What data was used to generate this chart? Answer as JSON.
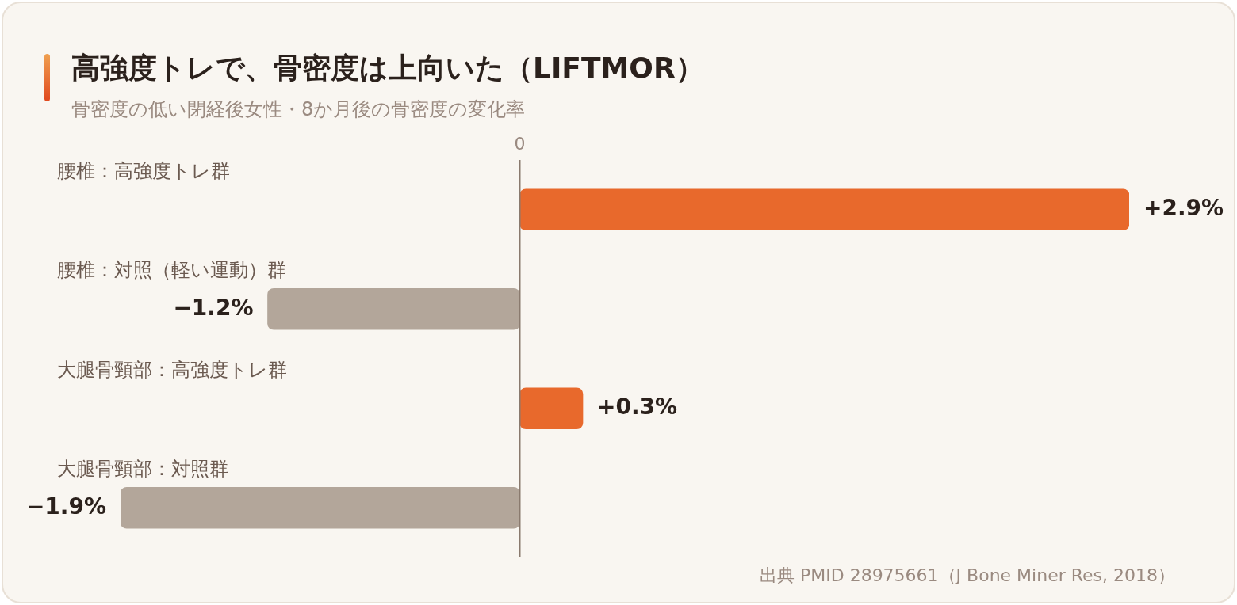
{
  "chart_data": {
    "type": "bar",
    "orientation": "horizontal",
    "title": "高強度トレで、骨密度は上向いた（LIFTMOR）",
    "subtitle": "骨密度の低い閉経後女性・8か月後の骨密度の変化率",
    "categories": [
      "腰椎：高強度トレ群",
      "腰椎：対照（軽い運動）群",
      "大腿骨頸部：高強度トレ群",
      "大腿骨頸部：対照群"
    ],
    "values": [
      2.9,
      -1.2,
      0.3,
      -1.9
    ],
    "colors": [
      "#e8692c",
      "#b3a69a",
      "#e8692c",
      "#b3a69a"
    ],
    "value_labels": [
      "+2.9%",
      "−1.2%",
      "+0.3%",
      "−1.9%"
    ],
    "legend": false,
    "ref_lines": [
      {
        "axis": "x",
        "value": 0,
        "label": "0",
        "color": "#8a7a6e"
      }
    ],
    "annotations": [
      "出典 PMID 28975661（J Bone Miner Res, 2018）"
    ]
  }
}
